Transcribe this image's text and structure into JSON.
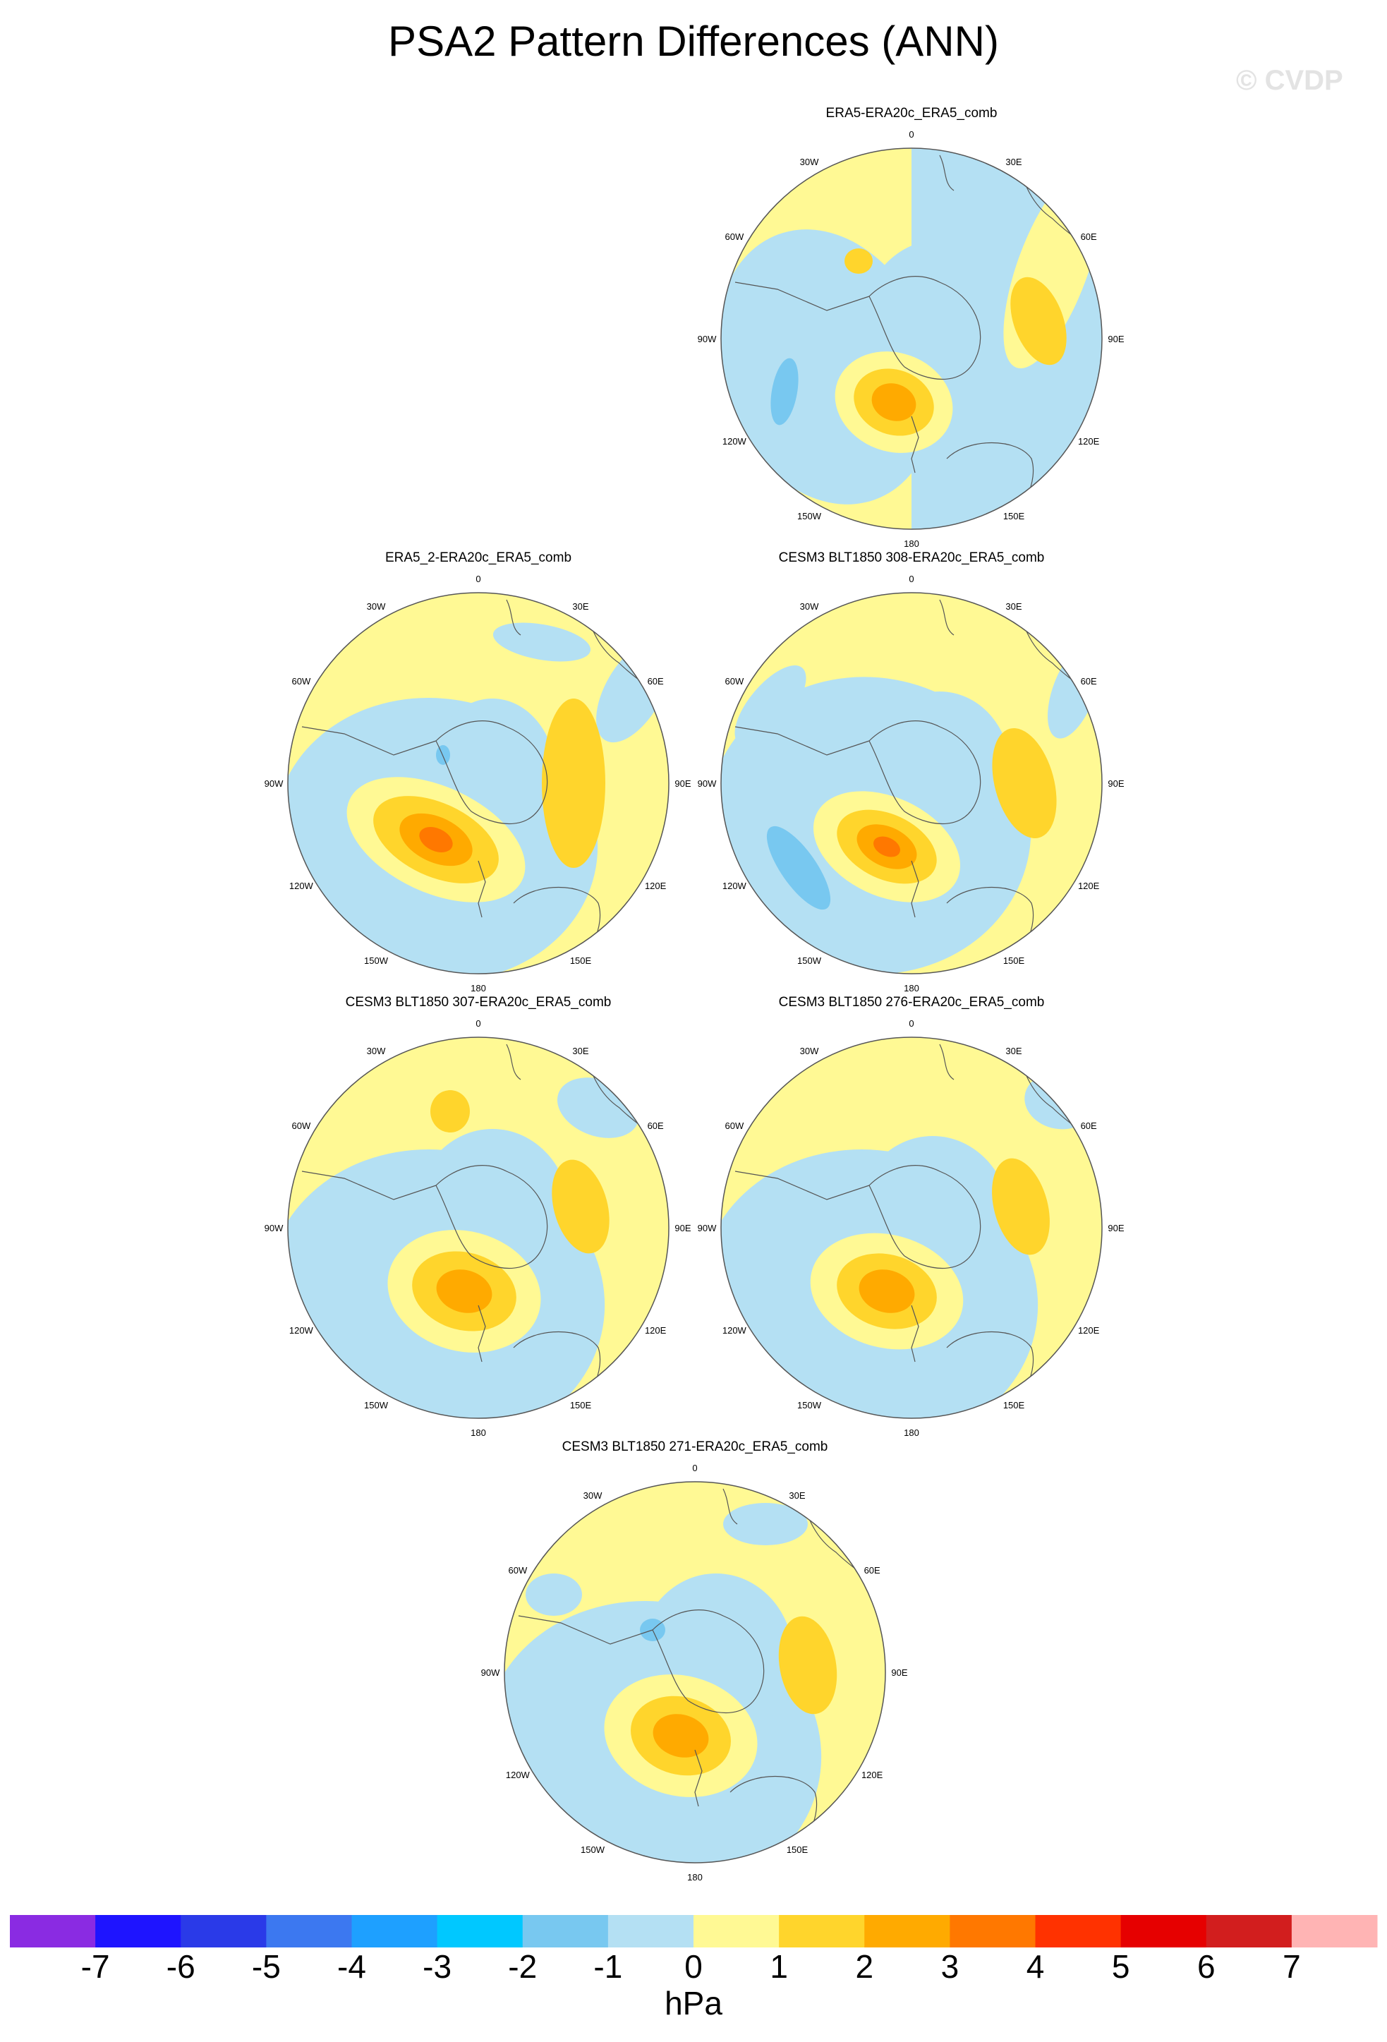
{
  "figure": {
    "title": "PSA2 Pattern Differences (ANN)",
    "watermark": "© CVDP"
  },
  "lon_labels": [
    "0",
    "30E",
    "60E",
    "90E",
    "120E",
    "150E",
    "180",
    "150W",
    "120W",
    "90W",
    "60W",
    "30W"
  ],
  "panels": [
    {
      "title": "ERA5-ERA20c_ERA5_comb"
    },
    {
      "title": "ERA5_2-ERA20c_ERA5_comb"
    },
    {
      "title": "CESM3 BLT1850 308-ERA20c_ERA5_comb"
    },
    {
      "title": "CESM3 BLT1850 307-ERA20c_ERA5_comb"
    },
    {
      "title": "CESM3 BLT1850 276-ERA20c_ERA5_comb"
    },
    {
      "title": "CESM3 BLT1850 271-ERA20c_ERA5_comb"
    }
  ],
  "colorbar": {
    "units": "hPa",
    "labels": [
      "-7",
      "-6",
      "-5",
      "-4",
      "-3",
      "-2",
      "-1",
      "0",
      "1",
      "2",
      "3",
      "4",
      "5",
      "6",
      "7"
    ],
    "colors": [
      "#8a2be2",
      "#1e14ff",
      "#2a3ae8",
      "#3c78f0",
      "#1ea0ff",
      "#00c8ff",
      "#78c8f0",
      "#b4e0f3",
      "#fff994",
      "#ffd52c",
      "#ffaa00",
      "#ff7800",
      "#ff3200",
      "#e60000",
      "#d21e1e",
      "#ffb4b4"
    ]
  }
}
